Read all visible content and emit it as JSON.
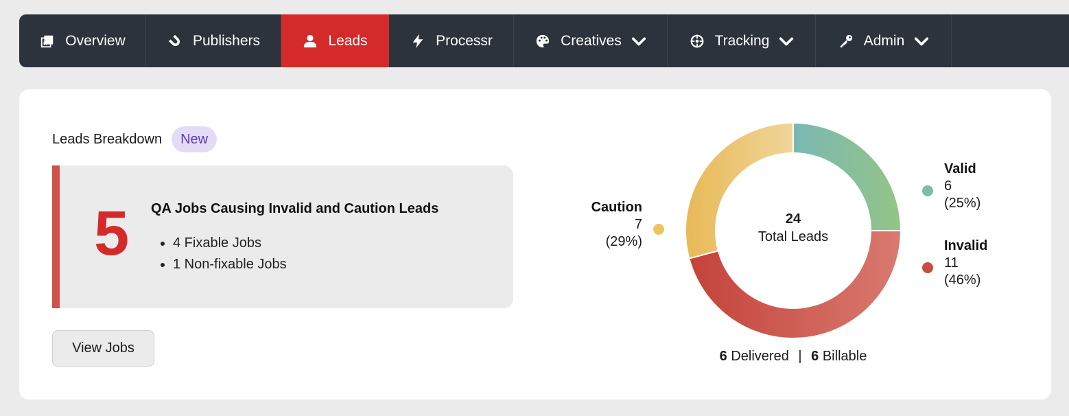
{
  "nav": {
    "items": [
      {
        "label": "Overview",
        "icon": "overview-icon",
        "active": false,
        "dropdown": false
      },
      {
        "label": "Publishers",
        "icon": "magnet-icon",
        "active": false,
        "dropdown": false
      },
      {
        "label": "Leads",
        "icon": "user-icon",
        "active": true,
        "dropdown": false
      },
      {
        "label": "Processr",
        "icon": "bolt-icon",
        "active": false,
        "dropdown": false
      },
      {
        "label": "Creatives",
        "icon": "palette-icon",
        "active": false,
        "dropdown": true
      },
      {
        "label": "Tracking",
        "icon": "crosshair-icon",
        "active": false,
        "dropdown": true
      },
      {
        "label": "Admin",
        "icon": "key-icon",
        "active": false,
        "dropdown": true
      }
    ]
  },
  "breakdown": {
    "title": "Leads Breakdown",
    "badge": "New",
    "qa": {
      "count": "5",
      "title": "QA Jobs Causing Invalid and Caution Leads",
      "items": [
        "4 Fixable Jobs",
        "1 Non-fixable Jobs"
      ]
    },
    "view_button": "View Jobs"
  },
  "chart_data": {
    "type": "pie",
    "donut": true,
    "center_value": "24",
    "center_label": "Total Leads",
    "slices": [
      {
        "name": "Valid",
        "value": 6,
        "percent_label": "(25%)",
        "color_start": "#7ab8b4",
        "color_end": "#94c487"
      },
      {
        "name": "Invalid",
        "value": 11,
        "percent_label": "(46%)",
        "color_start": "#c4433a",
        "color_end": "#d97a70"
      },
      {
        "name": "Caution",
        "value": 7,
        "percent_label": "(29%)",
        "color_start": "#e8b956",
        "color_end": "#f0d59a"
      }
    ],
    "dot_colors": {
      "Valid": "#7fbca0",
      "Invalid": "#cc4a40",
      "Caution": "#ecc462"
    },
    "legend": "around"
  },
  "stats": {
    "delivered_count": "6",
    "delivered_label": "Delivered",
    "separator": "|",
    "billable_count": "6",
    "billable_label": "Billable"
  }
}
